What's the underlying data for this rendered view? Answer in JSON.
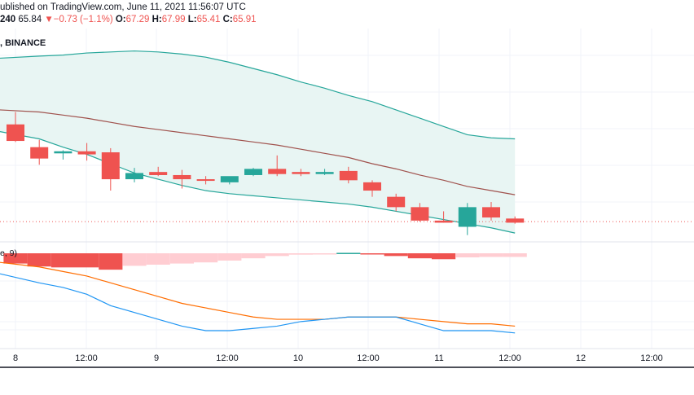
{
  "header": {
    "published": "ublished on TradingView.com, June 11, 2021 11:56:07 UTC",
    "timeframe": "240",
    "last": "65.84",
    "change_arrow": "▼",
    "change": "−0.73 (−1.1%)",
    "open_label": "O:",
    "open": "67.29",
    "high_label": "H:",
    "high": "67.99",
    "low_label": "L:",
    "low": "65.41",
    "close_label": "C:",
    "close": "65.91",
    "exchange": ", BINANCE"
  },
  "indicator_label": "e, 9)",
  "colors": {
    "up": "#26a69a",
    "down": "#ef5350",
    "bb_band": "#26a69a",
    "bb_basis": "#a0524d",
    "bb_fill": "#e8f5f3",
    "hist_down_strong": "#ef5350",
    "hist_down_weak": "#ffcdd2",
    "hist_up_strong": "#26a69a",
    "macd_line": "#2196f3",
    "signal_line": "#ff6d00",
    "grid": "#f0f3fa",
    "last_price_line": "#ef5350"
  },
  "chart_data": {
    "type": "candlestick",
    "x_ticks": [
      "8",
      "12:00",
      "9",
      "12:00",
      "10",
      "12:00",
      "11",
      "12:00",
      "12",
      "12:00"
    ],
    "candles": [
      {
        "o": 73.2,
        "h": 74.4,
        "l": 71.5,
        "c": 71.6
      },
      {
        "o": 71.0,
        "h": 71.7,
        "l": 69.3,
        "c": 69.9
      },
      {
        "o": 70.4,
        "h": 70.7,
        "l": 69.8,
        "c": 70.6
      },
      {
        "o": 70.6,
        "h": 71.4,
        "l": 69.7,
        "c": 70.3
      },
      {
        "o": 70.5,
        "h": 70.9,
        "l": 66.8,
        "c": 67.9
      },
      {
        "o": 67.9,
        "h": 69.0,
        "l": 67.6,
        "c": 68.5
      },
      {
        "o": 68.6,
        "h": 69.1,
        "l": 68.2,
        "c": 68.3
      },
      {
        "o": 68.3,
        "h": 68.8,
        "l": 67.0,
        "c": 67.9
      },
      {
        "o": 67.9,
        "h": 68.2,
        "l": 67.4,
        "c": 67.8
      },
      {
        "o": 67.6,
        "h": 68.1,
        "l": 67.4,
        "c": 68.2
      },
      {
        "o": 68.3,
        "h": 69.0,
        "l": 68.2,
        "c": 68.9
      },
      {
        "o": 68.9,
        "h": 70.2,
        "l": 68.2,
        "c": 68.4
      },
      {
        "o": 68.6,
        "h": 68.9,
        "l": 68.2,
        "c": 68.4
      },
      {
        "o": 68.4,
        "h": 68.9,
        "l": 68.3,
        "c": 68.6
      },
      {
        "o": 68.7,
        "h": 69.1,
        "l": 67.5,
        "c": 67.8
      },
      {
        "o": 67.6,
        "h": 67.8,
        "l": 66.2,
        "c": 66.8
      },
      {
        "o": 66.2,
        "h": 66.5,
        "l": 64.8,
        "c": 65.2
      },
      {
        "o": 65.2,
        "h": 65.6,
        "l": 63.8,
        "c": 63.9
      },
      {
        "o": 63.9,
        "h": 64.8,
        "l": 63.7,
        "c": 63.7
      },
      {
        "o": 63.3,
        "h": 65.6,
        "l": 62.5,
        "c": 65.2
      },
      {
        "o": 65.2,
        "h": 65.7,
        "l": 63.9,
        "c": 64.2
      },
      {
        "o": 64.1,
        "h": 64.3,
        "l": 63.6,
        "c": 63.7
      }
    ],
    "bollinger": {
      "upper": [
        79.6,
        79.8,
        79.9,
        80.1,
        80.2,
        80.3,
        80.2,
        80.0,
        79.7,
        79.2,
        78.6,
        78.0,
        77.3,
        76.7,
        76.0,
        75.4,
        74.6,
        73.8,
        73.0,
        72.2,
        71.9,
        71.8
      ],
      "basis": [
        74.6,
        74.4,
        74.1,
        73.8,
        73.4,
        73.0,
        72.7,
        72.4,
        72.1,
        71.8,
        71.5,
        71.2,
        70.8,
        70.4,
        70.0,
        69.4,
        68.9,
        68.3,
        67.8,
        67.2,
        66.8,
        66.4
      ],
      "lower": [
        72.5,
        71.8,
        71.0,
        70.3,
        69.4,
        68.5,
        67.9,
        67.3,
        66.8,
        66.5,
        66.3,
        66.1,
        65.9,
        65.7,
        65.5,
        65.2,
        64.8,
        64.4,
        64.0,
        63.6,
        63.2,
        62.7
      ]
    },
    "price_range": [
      62.0,
      80.5
    ],
    "last_price": 63.8,
    "macd": {
      "histogram": [
        -0.45,
        -0.58,
        -0.62,
        -0.62,
        -0.72,
        -0.55,
        -0.5,
        -0.45,
        -0.4,
        -0.32,
        -0.22,
        -0.12,
        -0.06,
        -0.02,
        0.02,
        -0.02,
        -0.12,
        -0.22,
        -0.26,
        -0.18,
        -0.16,
        -0.16
      ],
      "macd_line": [
        -0.9,
        -1.3,
        -1.5,
        -1.8,
        -2.3,
        -2.6,
        -2.9,
        -3.2,
        -3.4,
        -3.4,
        -3.3,
        -3.2,
        -3.0,
        -2.9,
        -2.8,
        -2.8,
        -2.8,
        -3.1,
        -3.4,
        -3.4,
        -3.4,
        -3.5
      ],
      "signal_line": [
        -0.4,
        -0.6,
        -0.8,
        -1.0,
        -1.3,
        -1.6,
        -1.9,
        -2.2,
        -2.4,
        -2.6,
        -2.8,
        -2.9,
        -2.9,
        -2.9,
        -2.8,
        -2.8,
        -2.8,
        -2.9,
        -3.0,
        -3.1,
        -3.1,
        -3.2
      ],
      "range": [
        -3.9,
        0.4
      ]
    },
    "grid": true
  }
}
